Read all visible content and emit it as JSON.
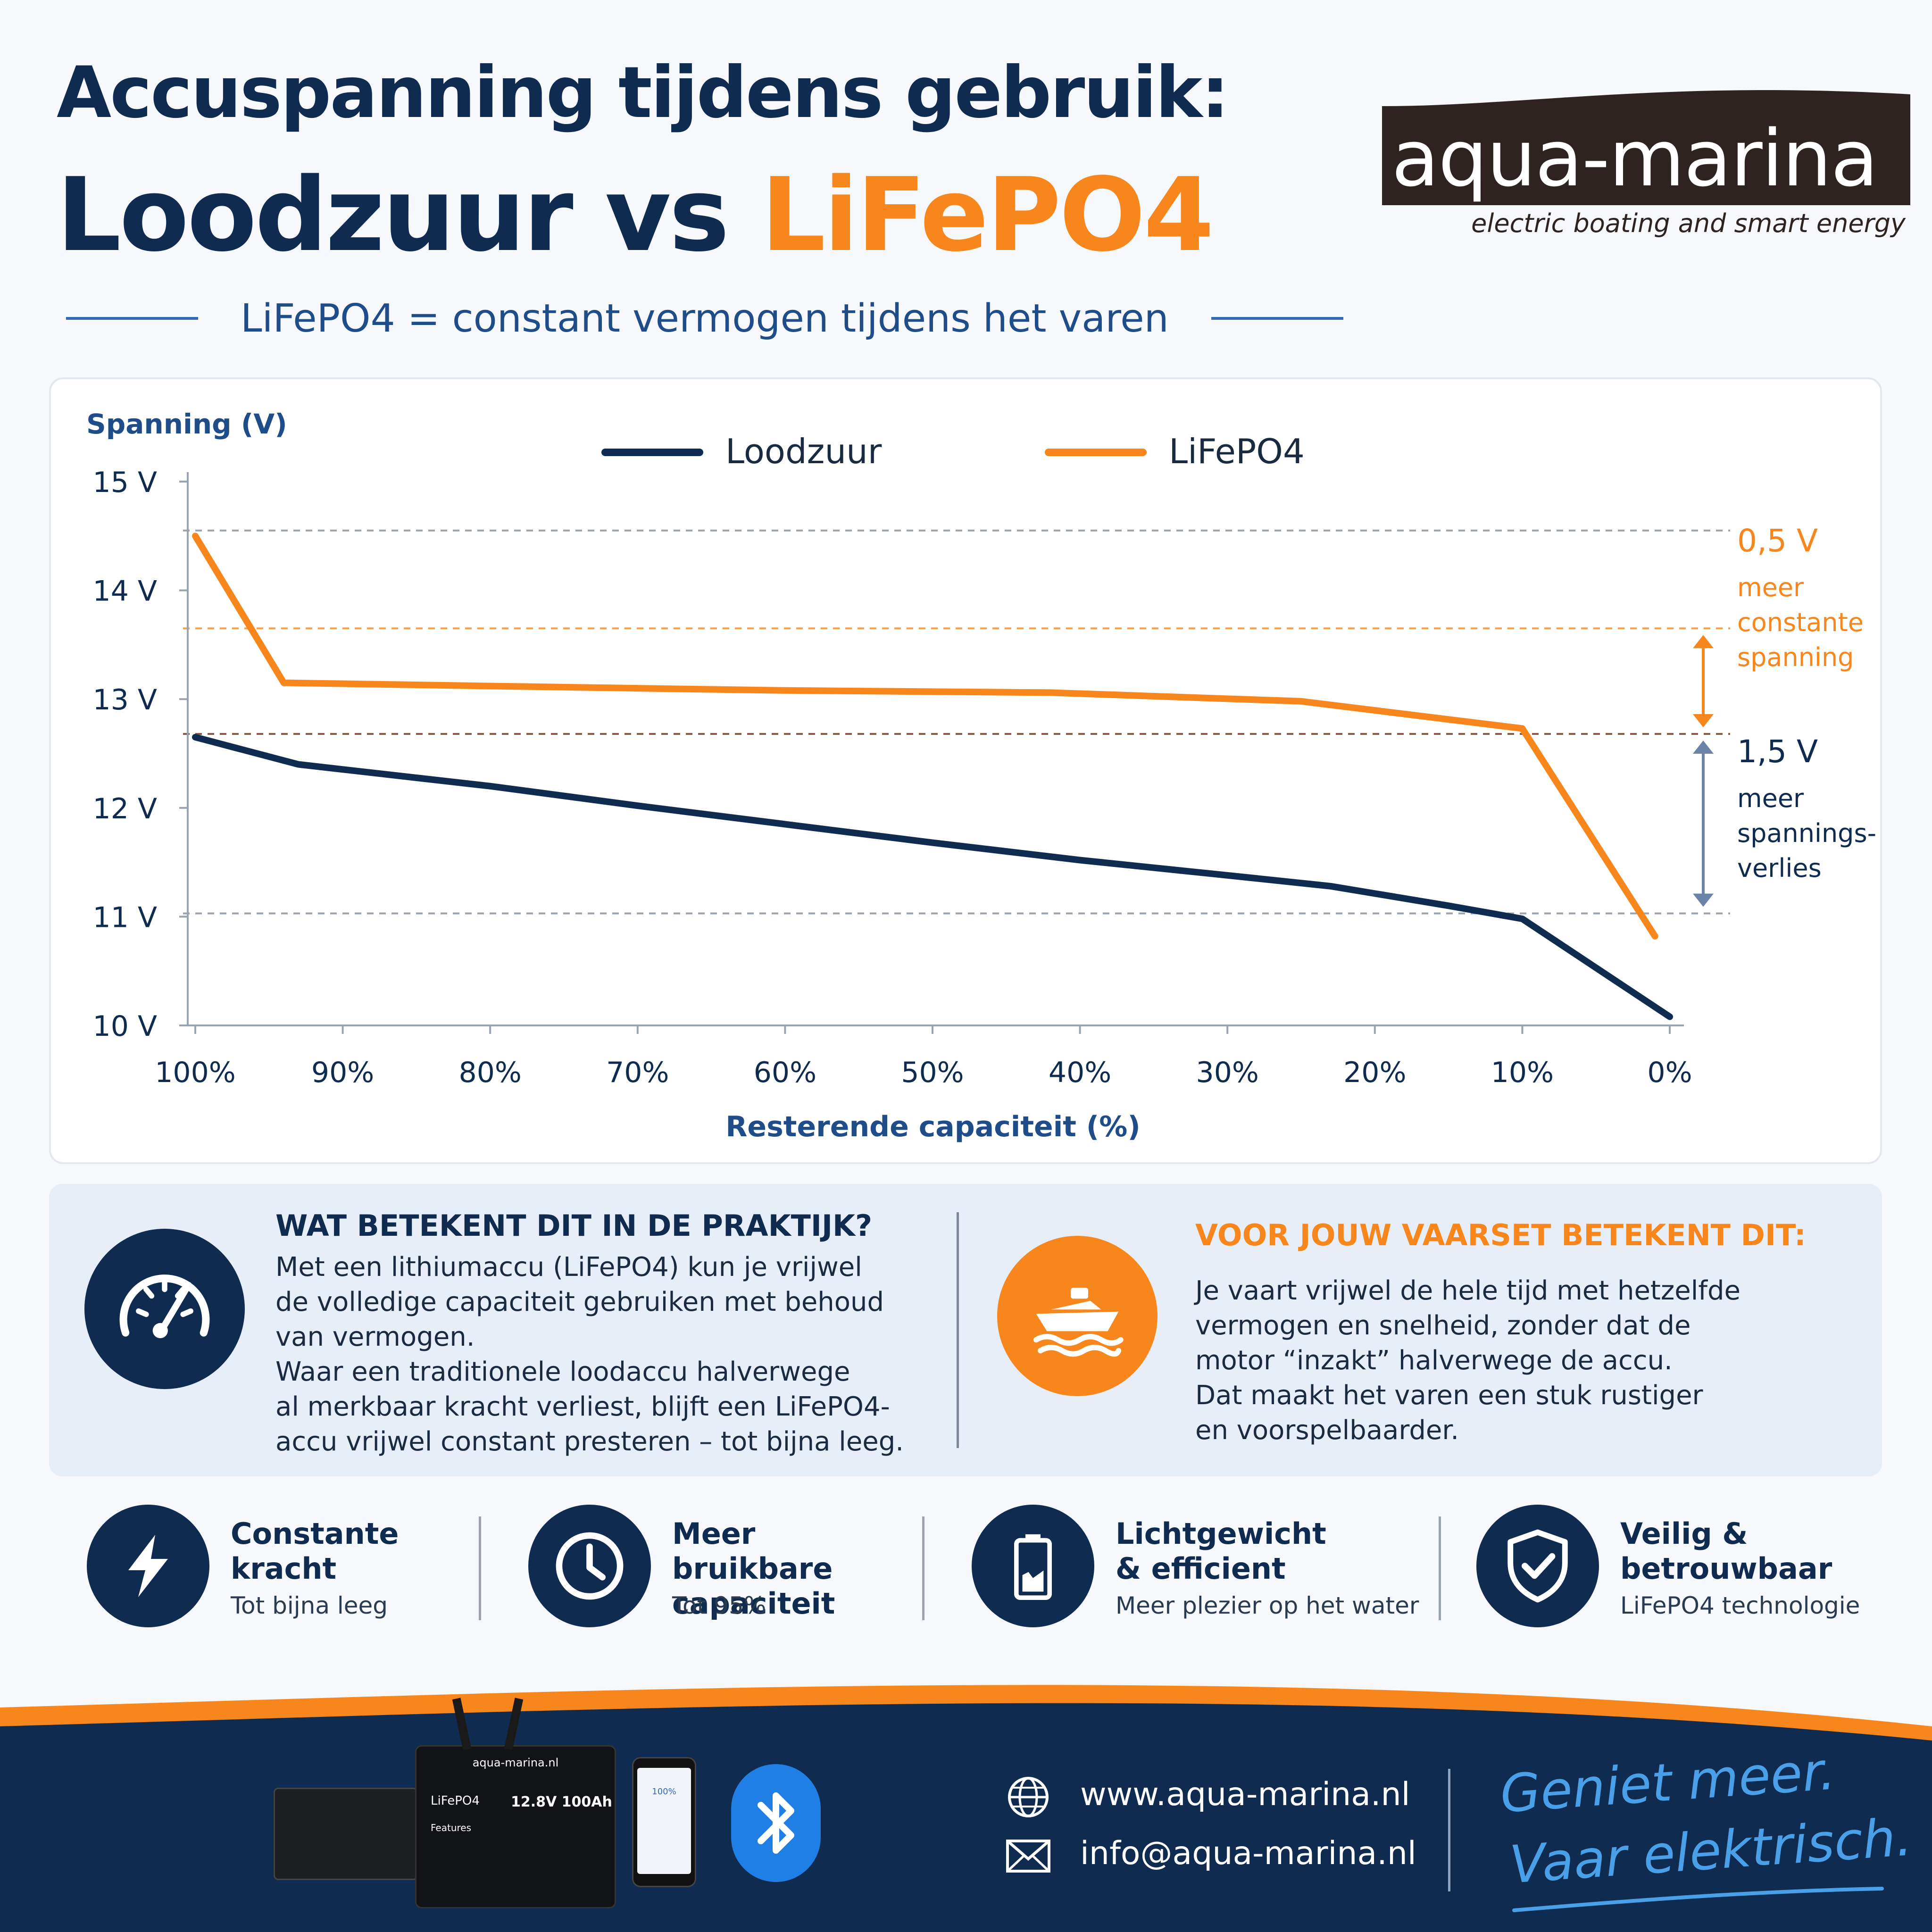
{
  "header": {
    "title_line1": "Accuspanning tijdens gebruik:",
    "title_line2_part1": "Loodzuur vs ",
    "title_line2_part2": "LiFePO4",
    "subtitle": "LiFePO4 = constant vermogen tijdens het varen"
  },
  "brand": {
    "logo_text": "aqua-marina",
    "tagline": "electric boating and smart energy"
  },
  "colors": {
    "navy": "#0f2b4f",
    "orange": "#f7861c",
    "blue_accent": "#2f6cb5"
  },
  "chart_data": {
    "type": "line",
    "ylabel": "Spanning (V)",
    "xlabel": "Resterende capaciteit (%)",
    "ylim": [
      10,
      15
    ],
    "xlim": [
      100,
      0
    ],
    "y_ticks": [
      "10 V",
      "11 V",
      "12 V",
      "13 V",
      "14 V",
      "15 V"
    ],
    "y_tick_values": [
      10,
      11,
      12,
      13,
      14,
      15
    ],
    "x_ticks": [
      "100%",
      "90%",
      "80%",
      "70%",
      "60%",
      "50%",
      "40%",
      "30%",
      "20%",
      "10%",
      "0%"
    ],
    "x_tick_values": [
      100,
      90,
      80,
      70,
      60,
      50,
      40,
      30,
      20,
      10,
      0
    ],
    "legend_position": "top",
    "series": [
      {
        "name": "Loodzuur",
        "color": "#0f2b4f",
        "points": [
          [
            100,
            12.65
          ],
          [
            93,
            12.4
          ],
          [
            80,
            12.2
          ],
          [
            70,
            12.02
          ],
          [
            60,
            11.85
          ],
          [
            50,
            11.68
          ],
          [
            40,
            11.52
          ],
          [
            30,
            11.38
          ],
          [
            23,
            11.28
          ],
          [
            15,
            11.1
          ],
          [
            10,
            10.98
          ],
          [
            0,
            10.08
          ]
        ]
      },
      {
        "name": "LiFePO4",
        "color": "#f7861c",
        "points": [
          [
            100,
            14.5
          ],
          [
            94,
            13.15
          ],
          [
            80,
            13.12
          ],
          [
            60,
            13.08
          ],
          [
            42,
            13.06
          ],
          [
            25,
            12.98
          ],
          [
            10,
            12.73
          ],
          [
            1,
            10.82
          ]
        ]
      }
    ],
    "reference_lines": [
      {
        "y": 14.55,
        "color": "#9aa3b0"
      },
      {
        "y": 13.65,
        "color": "#f7a24a"
      },
      {
        "y": 12.68,
        "color": "#8a5a45"
      },
      {
        "y": 11.03,
        "color": "#9aa3b0"
      }
    ],
    "annotations": [
      {
        "value": "0,5 V",
        "lines": [
          "meer",
          "constante",
          "spanning"
        ],
        "color": "#f7861c",
        "from": 13.65,
        "to": 12.68
      },
      {
        "value": "1,5 V",
        "lines": [
          "meer",
          "spannings-",
          "verlies"
        ],
        "color": "#0f2b4f",
        "from": 12.68,
        "to": 11.03
      }
    ]
  },
  "info": {
    "left_heading": "WAT BETEKENT DIT IN DE PRAKTIJK?",
    "left_text": "Met een lithiumaccu (LiFePO4) kun je vrijwel\nde volledige capaciteit gebruiken met behoud\nvan vermogen.\nWaar een traditionele loodaccu halverwege\nal merkbaar kracht verliest, blijft een LiFePO4-\naccu vrijwel constant presteren – tot bijna leeg.",
    "left_icon": "speedometer-icon",
    "right_heading": "VOOR JOUW VAARSET BETEKENT DIT:",
    "right_text": "Je vaart vrijwel de hele tijd met hetzelfde\nvermogen en snelheid, zonder dat de\nmotor “inzakt” halverwege de accu.\nDat maakt het varen een stuk rustiger\nen voorspelbaarder.",
    "right_icon": "boat-icon"
  },
  "features": [
    {
      "title": "Constante\nkracht",
      "subtitle": "Tot bijna leeg",
      "icon": "lightning-icon"
    },
    {
      "title": "Meer bruikbare\ncapaciteit",
      "subtitle": "Tot 95%",
      "icon": "clock-icon"
    },
    {
      "title": "Lichtgewicht\n& efficient",
      "subtitle": "Meer plezier op het water",
      "icon": "battery-icon"
    },
    {
      "title": "Veilig &\nbetrouwbaar",
      "subtitle": "LiFePO4 technologie",
      "icon": "shield-check-icon"
    }
  ],
  "footer": {
    "website": "www.aqua-marina.nl",
    "email": "info@aqua-marina.nl",
    "slogan_line1": "Geniet meer.",
    "slogan_line2": "Vaar elektrisch.",
    "product": {
      "battery_brand": "aqua-marina.nl",
      "battery_type": "LiFePO4",
      "battery_spec": "12.8V 100Ah",
      "battery_features_label": "Features",
      "phone_percent": "100%"
    }
  }
}
